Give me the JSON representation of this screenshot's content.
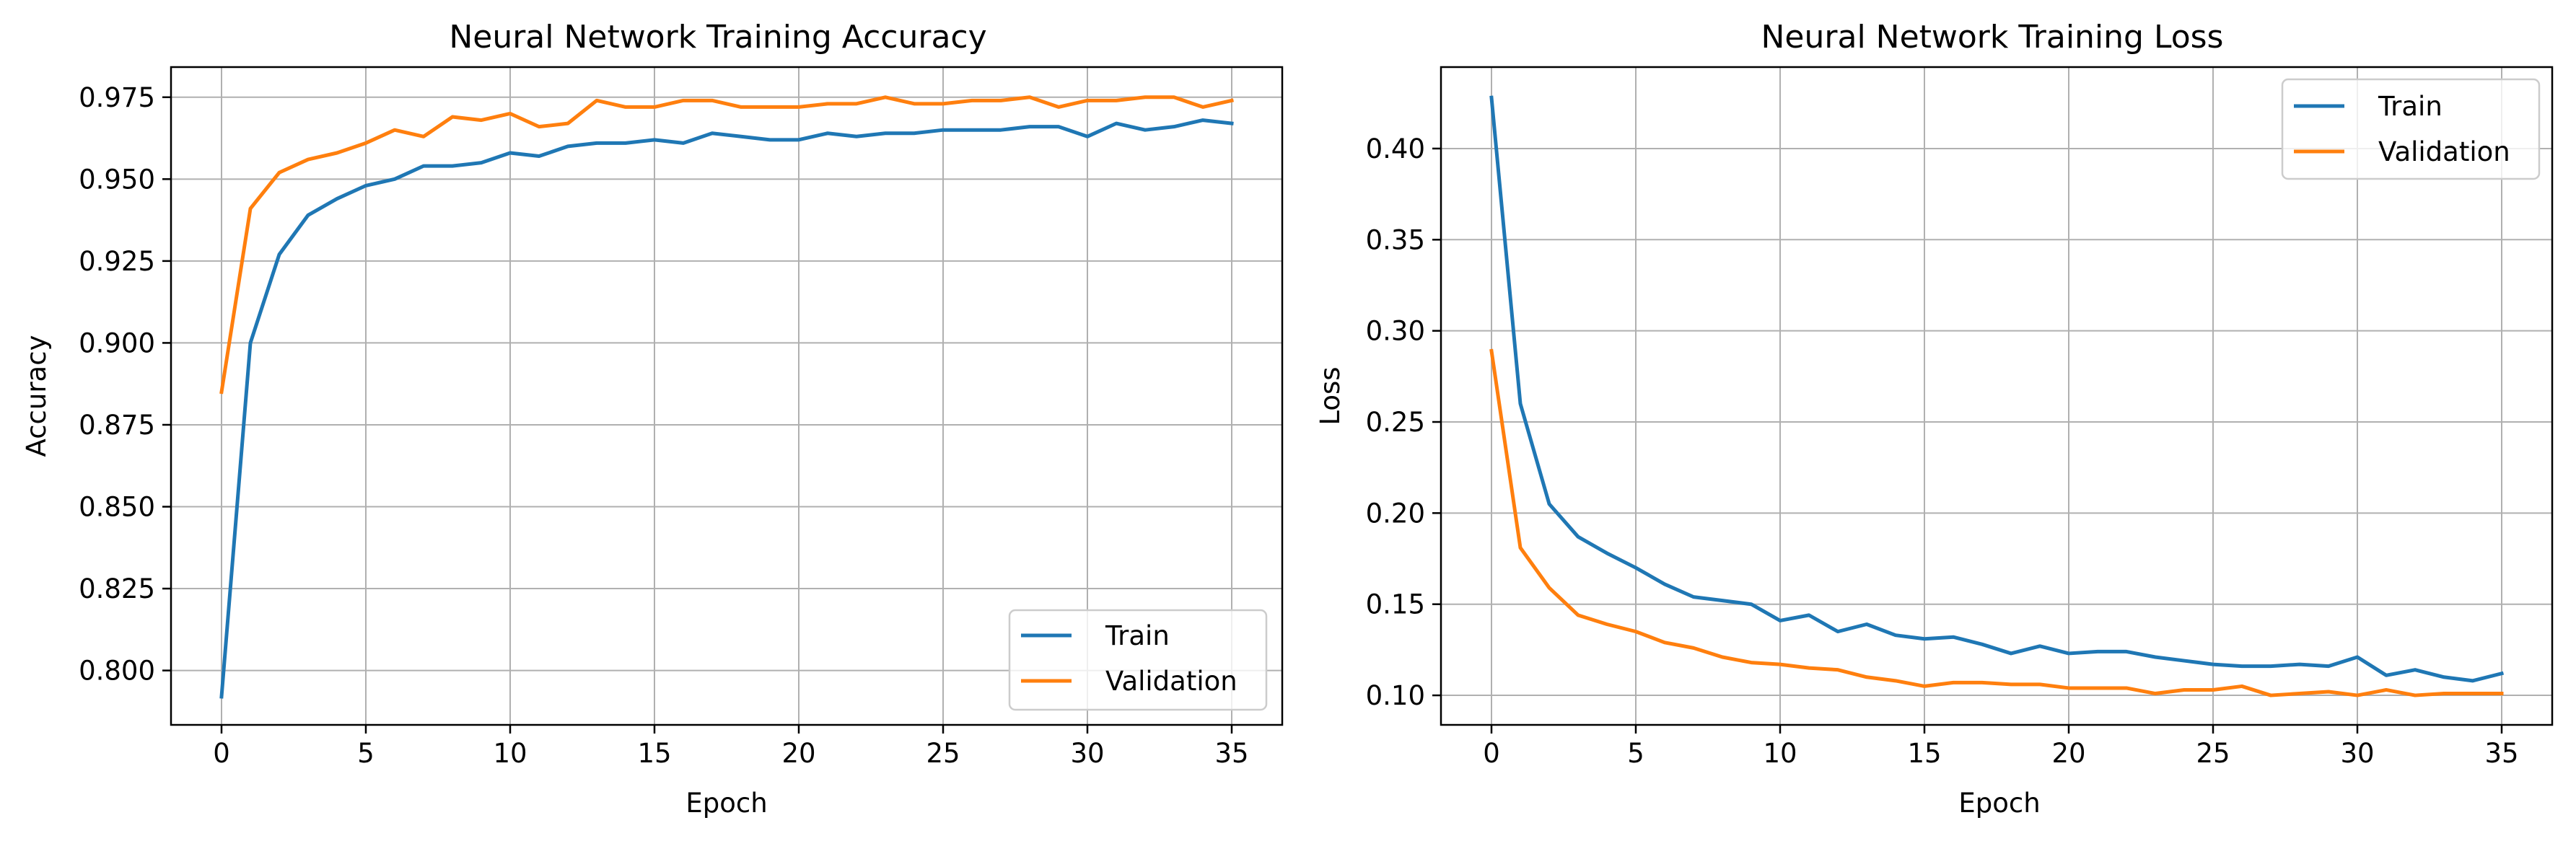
{
  "colors": {
    "train": "#1f77b4",
    "validation": "#ff7f0e",
    "grid": "#b0b0b0"
  },
  "chart_data": [
    {
      "type": "line",
      "title": "Neural Network Training Accuracy",
      "xlabel": "Epoch",
      "ylabel": "Accuracy",
      "xlim": [
        -1.75,
        36.75
      ],
      "ylim": [
        0.7834,
        0.9842
      ],
      "xticks": [
        0,
        5,
        10,
        15,
        20,
        25,
        30,
        35
      ],
      "yticks": [
        0.8,
        0.825,
        0.85,
        0.875,
        0.9,
        0.925,
        0.95,
        0.975
      ],
      "xtick_labels": [
        "0",
        "5",
        "10",
        "15",
        "20",
        "25",
        "30",
        "35"
      ],
      "ytick_labels": [
        "0.800",
        "0.825",
        "0.850",
        "0.875",
        "0.900",
        "0.925",
        "0.950",
        "0.975"
      ],
      "grid": true,
      "legend_position": "lower-right",
      "x": [
        0,
        1,
        2,
        3,
        4,
        5,
        6,
        7,
        8,
        9,
        10,
        11,
        12,
        13,
        14,
        15,
        16,
        17,
        18,
        19,
        20,
        21,
        22,
        23,
        24,
        25,
        26,
        27,
        28,
        29,
        30,
        31,
        32,
        33,
        34,
        35
      ],
      "series": [
        {
          "name": "Train",
          "color_key": "train",
          "values": [
            0.792,
            0.9,
            0.927,
            0.939,
            0.944,
            0.948,
            0.95,
            0.954,
            0.954,
            0.955,
            0.958,
            0.957,
            0.96,
            0.961,
            0.961,
            0.962,
            0.961,
            0.964,
            0.963,
            0.962,
            0.962,
            0.964,
            0.963,
            0.964,
            0.964,
            0.965,
            0.965,
            0.965,
            0.966,
            0.966,
            0.963,
            0.967,
            0.965,
            0.966,
            0.968,
            0.967
          ]
        },
        {
          "name": "Validation",
          "color_key": "validation",
          "values": [
            0.885,
            0.941,
            0.952,
            0.956,
            0.958,
            0.961,
            0.965,
            0.963,
            0.969,
            0.968,
            0.97,
            0.966,
            0.967,
            0.974,
            0.972,
            0.972,
            0.974,
            0.974,
            0.972,
            0.972,
            0.972,
            0.973,
            0.973,
            0.975,
            0.973,
            0.973,
            0.974,
            0.974,
            0.975,
            0.972,
            0.974,
            0.974,
            0.975,
            0.975,
            0.972,
            0.974
          ]
        }
      ]
    },
    {
      "type": "line",
      "title": "Neural Network Training Loss",
      "xlabel": "Epoch",
      "ylabel": "Loss",
      "xlim": [
        -1.75,
        36.75
      ],
      "ylim": [
        0.0838,
        0.4447
      ],
      "xticks": [
        0,
        5,
        10,
        15,
        20,
        25,
        30,
        35
      ],
      "yticks": [
        0.1,
        0.15,
        0.2,
        0.25,
        0.3,
        0.35,
        0.4
      ],
      "xtick_labels": [
        "0",
        "5",
        "10",
        "15",
        "20",
        "25",
        "30",
        "35"
      ],
      "ytick_labels": [
        "0.10",
        "0.15",
        "0.20",
        "0.25",
        "0.30",
        "0.35",
        "0.40"
      ],
      "grid": true,
      "legend_position": "upper-right",
      "x": [
        0,
        1,
        2,
        3,
        4,
        5,
        6,
        7,
        8,
        9,
        10,
        11,
        12,
        13,
        14,
        15,
        16,
        17,
        18,
        19,
        20,
        21,
        22,
        23,
        24,
        25,
        26,
        27,
        28,
        29,
        30,
        31,
        32,
        33,
        34,
        35
      ],
      "series": [
        {
          "name": "Train",
          "color_key": "train",
          "values": [
            0.428,
            0.26,
            0.205,
            0.187,
            0.178,
            0.17,
            0.161,
            0.154,
            0.152,
            0.15,
            0.141,
            0.144,
            0.135,
            0.139,
            0.133,
            0.131,
            0.132,
            0.128,
            0.123,
            0.127,
            0.123,
            0.124,
            0.124,
            0.121,
            0.119,
            0.117,
            0.116,
            0.116,
            0.117,
            0.116,
            0.121,
            0.111,
            0.114,
            0.11,
            0.108,
            0.112
          ]
        },
        {
          "name": "Validation",
          "color_key": "validation",
          "values": [
            0.289,
            0.181,
            0.159,
            0.144,
            0.139,
            0.135,
            0.129,
            0.126,
            0.121,
            0.118,
            0.117,
            0.115,
            0.114,
            0.11,
            0.108,
            0.105,
            0.107,
            0.107,
            0.106,
            0.106,
            0.104,
            0.104,
            0.104,
            0.101,
            0.103,
            0.103,
            0.105,
            0.1,
            0.101,
            0.102,
            0.1,
            0.103,
            0.1,
            0.101,
            0.101,
            0.101
          ]
        }
      ]
    }
  ]
}
